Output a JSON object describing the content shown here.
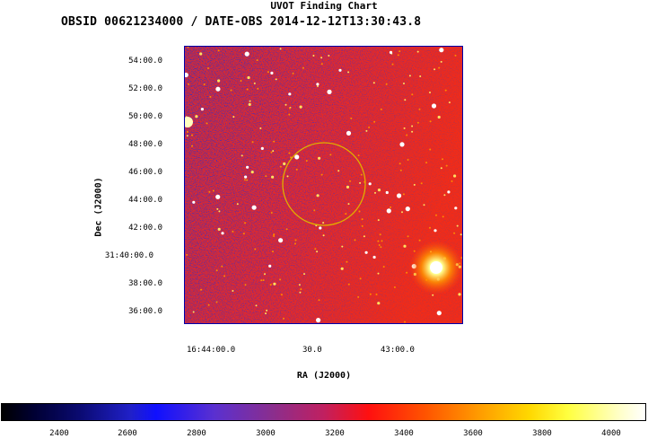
{
  "window": {
    "title": "UVOT Finding Chart",
    "subtitle": "OBSID 00621234000 / DATE-OBS 2014-12-12T13:30:43.8"
  },
  "axes": {
    "ylabel": "Dec (J2000)",
    "xlabel": "RA (J2000)",
    "dec_ticks": [
      "54:00.0",
      "52:00.0",
      "50:00.0",
      "48:00.0",
      "46:00.0",
      "44:00.0",
      "42:00.0",
      "31:40:00.0",
      "38:00.0",
      "36:00.0"
    ],
    "ra_ticks": [
      "16:44:00.0",
      "30.0",
      "43:00.0"
    ]
  },
  "colorbar": {
    "ticks": [
      "2400",
      "2600",
      "2800",
      "3000",
      "3200",
      "3400",
      "3600",
      "3800",
      "4000"
    ]
  },
  "colors": {
    "circle": "#e0b000",
    "frame": "#0000aa"
  }
}
